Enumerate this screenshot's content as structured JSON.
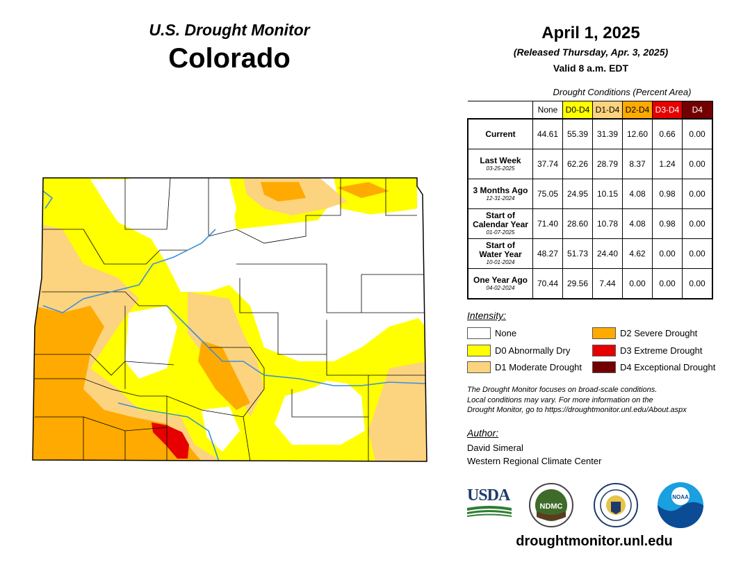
{
  "header": {
    "subtitle": "U.S. Drought Monitor",
    "state": "Colorado"
  },
  "date": {
    "main": "April 1, 2025",
    "released": "(Released Thursday, Apr. 3, 2025)",
    "valid": "Valid 8 a.m. EDT"
  },
  "table": {
    "caption": "Drought Conditions (Percent Area)",
    "columns": [
      {
        "label": "None",
        "color": "#ffffff",
        "text": "#000000"
      },
      {
        "label": "D0-D4",
        "color": "#ffff00",
        "text": "#000000"
      },
      {
        "label": "D1-D4",
        "color": "#fcd37f",
        "text": "#000000"
      },
      {
        "label": "D2-D4",
        "color": "#ffaa00",
        "text": "#000000"
      },
      {
        "label": "D3-D4",
        "color": "#e60000",
        "text": "#ffffff"
      },
      {
        "label": "D4",
        "color": "#730000",
        "text": "#ffffff"
      }
    ],
    "rows": [
      {
        "label": [
          "Current"
        ],
        "date": "",
        "values": [
          "44.61",
          "55.39",
          "31.39",
          "12.60",
          "0.66",
          "0.00"
        ]
      },
      {
        "label": [
          "Last Week"
        ],
        "date": "03-25-2025",
        "values": [
          "37.74",
          "62.26",
          "28.79",
          "8.37",
          "1.24",
          "0.00"
        ]
      },
      {
        "label": [
          "3 Months Ago"
        ],
        "date": "12-31-2024",
        "values": [
          "75.05",
          "24.95",
          "10.15",
          "4.08",
          "0.98",
          "0.00"
        ]
      },
      {
        "label": [
          "Start of",
          "Calendar Year"
        ],
        "date": "01-07-2025",
        "values": [
          "71.40",
          "28.60",
          "10.78",
          "4.08",
          "0.98",
          "0.00"
        ]
      },
      {
        "label": [
          "Start of",
          "Water Year"
        ],
        "date": "10-01-2024",
        "values": [
          "48.27",
          "51.73",
          "24.40",
          "4.62",
          "0.00",
          "0.00"
        ]
      },
      {
        "label": [
          "One Year Ago"
        ],
        "date": "04-02-2024",
        "values": [
          "70.44",
          "29.56",
          "7.44",
          "0.00",
          "0.00",
          "0.00"
        ]
      }
    ]
  },
  "legend": {
    "title": "Intensity:",
    "items": [
      {
        "label": "None",
        "color": "#ffffff"
      },
      {
        "label": "D0 Abnormally Dry",
        "color": "#ffff00"
      },
      {
        "label": "D1 Moderate Drought",
        "color": "#fcd37f"
      },
      {
        "label": "D2 Severe Drought",
        "color": "#ffaa00"
      },
      {
        "label": "D3 Extreme Drought",
        "color": "#e60000"
      },
      {
        "label": "D4 Exceptional Drought",
        "color": "#730000"
      }
    ]
  },
  "note": {
    "line1": "The Drought Monitor focuses on broad-scale conditions.",
    "line2": "Local conditions may vary. For more information on the",
    "line3": "Drought Monitor, go to https://droughtmonitor.unl.edu/About.aspx"
  },
  "author": {
    "title": "Author:",
    "name": "David Simeral",
    "org": "Western Regional Climate Center"
  },
  "logos": {
    "usda": "USDA",
    "ndmc": "NDMC"
  },
  "website": "droughtmonitor.unl.edu",
  "colors": {
    "river": "#3b8fd9",
    "county_line": "#000000"
  }
}
